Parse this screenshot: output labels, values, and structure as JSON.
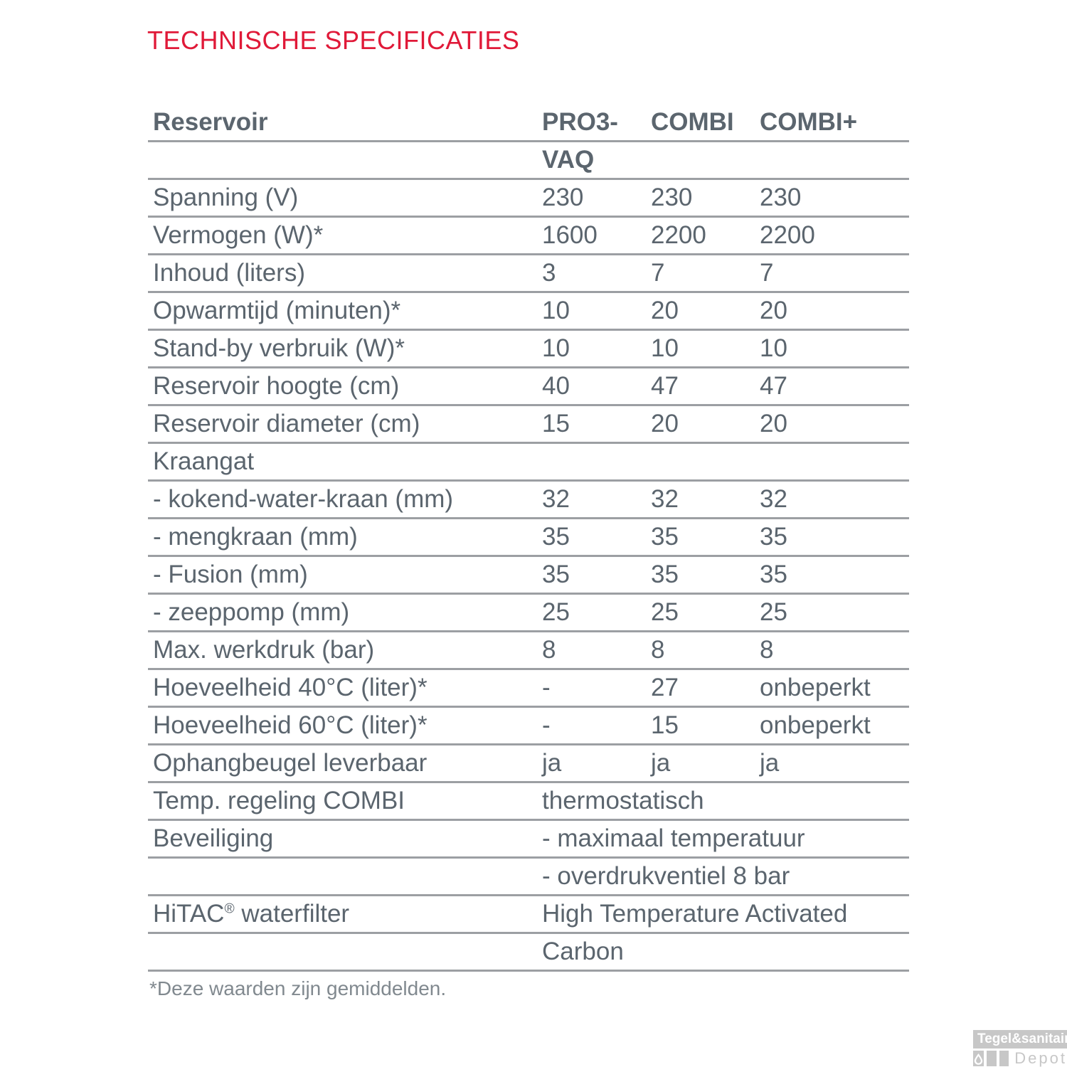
{
  "title": "TECHNISCHE SPECIFICATIES",
  "table": {
    "header": {
      "label": "Reservoir",
      "col1_line1": "PRO3-",
      "col1_line2": "VAQ",
      "col2": "COMBI",
      "col3": "COMBI+"
    },
    "rows": [
      {
        "label": "Spanning (V)",
        "values": [
          "230",
          "230",
          "230"
        ]
      },
      {
        "label": "Vermogen (W)*",
        "values": [
          "1600",
          "2200",
          "2200"
        ]
      },
      {
        "label": "Inhoud (liters)",
        "values": [
          "3",
          "7",
          "7"
        ]
      },
      {
        "label": "Opwarmtijd (minuten)*",
        "values": [
          "10",
          "20",
          "20"
        ]
      },
      {
        "label": "Stand-by verbruik (W)*",
        "values": [
          "10",
          "10",
          "10"
        ]
      },
      {
        "label": "Reservoir hoogte (cm)",
        "values": [
          "40",
          "47",
          "47"
        ]
      },
      {
        "label": "Reservoir diameter (cm)",
        "values": [
          "15",
          "20",
          "20"
        ]
      },
      {
        "label": "Kraangat",
        "values": [
          "",
          "",
          ""
        ]
      },
      {
        "label": "- kokend-water-kraan (mm)",
        "values": [
          "32",
          "32",
          "32"
        ]
      },
      {
        "label": "- mengkraan (mm)",
        "values": [
          "35",
          "35",
          "35"
        ]
      },
      {
        "label": "- Fusion (mm)",
        "values": [
          "35",
          "35",
          "35"
        ]
      },
      {
        "label": "- zeeppomp (mm)",
        "values": [
          "25",
          "25",
          "25"
        ]
      },
      {
        "label": "Max. werkdruk (bar)",
        "values": [
          "8",
          "8",
          "8"
        ]
      },
      {
        "label": "Hoeveelheid 40°C (liter)*",
        "values": [
          "-",
          "27",
          "onbeperkt"
        ]
      },
      {
        "label": "Hoeveelheid 60°C (liter)*",
        "values": [
          "-",
          "15",
          "onbeperkt"
        ]
      },
      {
        "label": "Ophangbeugel leverbaar",
        "values": [
          "ja",
          "ja",
          "ja"
        ]
      },
      {
        "label": "Temp. regeling COMBI",
        "span": "thermostatisch"
      },
      {
        "label": "Beveiliging",
        "span": "- maximaal temperatuur"
      },
      {
        "label": "",
        "span": "- overdrukventiel 8 bar"
      },
      {
        "label": "HiTAC® waterfilter",
        "span": "High Temperature Activated"
      },
      {
        "label": "",
        "span": "Carbon"
      }
    ]
  },
  "footnote": "*Deze waarden zijn gemiddelden.",
  "logo": {
    "brand": "Tegel&sanitair",
    "sub": "Depot",
    "icon": "water-drop-icon"
  },
  "colors": {
    "accent_red": "#e01938",
    "table_text": "#5b656e",
    "rule_line": "#9c9fa3",
    "footnote_text": "#81898f",
    "logo_gray": "#c7c7c7"
  }
}
